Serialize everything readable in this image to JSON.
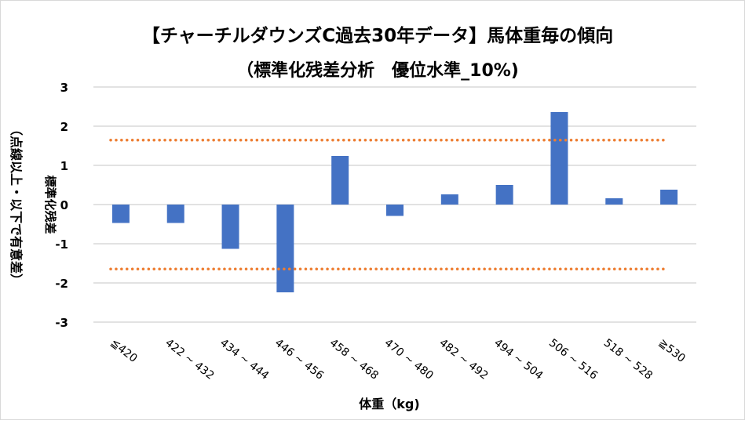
{
  "chart_data": {
    "type": "bar",
    "title": "【チャーチルダウンズC過去30年データ】馬体重毎の傾向",
    "subtitle": "（標準化残差分析　優位水準_10%)",
    "xlabel": "体重（kg)",
    "ylabel": "標準化残差",
    "ylabel2": "（点線以上・以下で有意差）",
    "ylim": [
      -3,
      3
    ],
    "yticks": [
      3,
      2,
      1,
      0,
      -1,
      -2,
      -3
    ],
    "grid": true,
    "categories": [
      "≦420",
      "422 ~ 432",
      "434 ~ 444",
      "446 ~ 456",
      "458 ~ 468",
      "470 ~ 480",
      "482 ~ 492",
      "494 ~ 504",
      "506 ~ 516",
      "518 ~ 528",
      "≧530"
    ],
    "series": [
      {
        "name": "標準化残差",
        "values": [
          -0.47,
          -0.47,
          -1.13,
          -2.24,
          1.24,
          -0.29,
          0.26,
          0.5,
          2.36,
          0.16,
          0.38
        ]
      }
    ],
    "thresholds": [
      1.645,
      -1.645
    ],
    "colors": {
      "bar": "#4472c4",
      "threshold": "#ed7d31",
      "grid": "#d9d9d9"
    }
  }
}
